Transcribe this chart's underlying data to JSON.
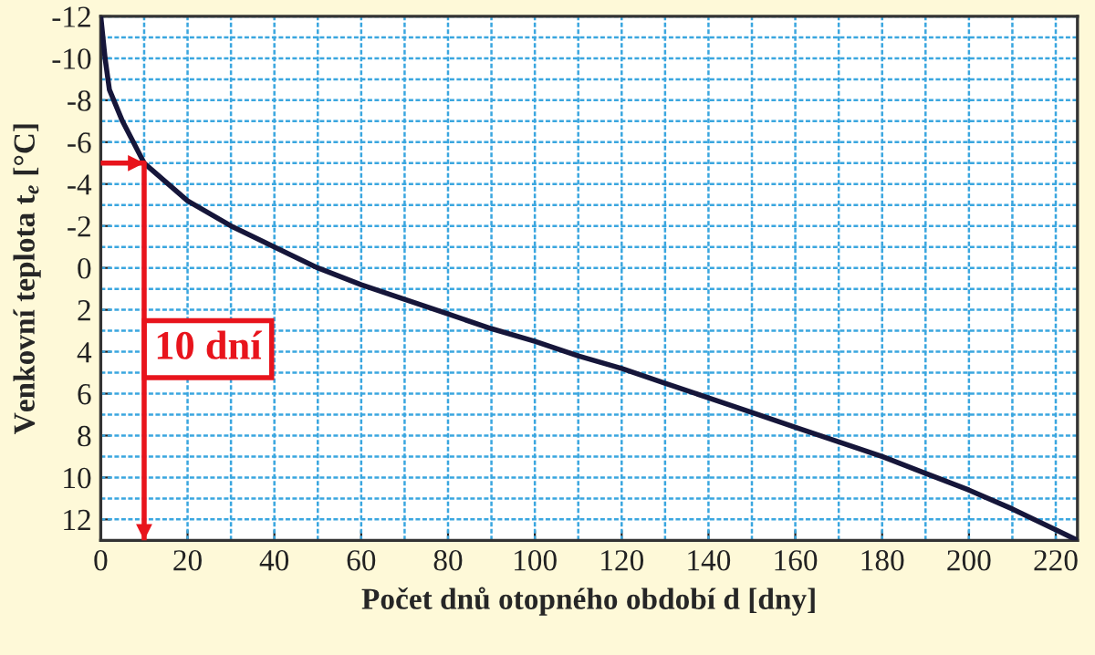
{
  "chart_data": {
    "type": "line",
    "xlabel": "Počet dnů otopného období d [dny]",
    "ylabel": "Venkovní teplota t$_{e}$ [°C]",
    "xlim": [
      0,
      225
    ],
    "xticks": [
      0,
      20,
      40,
      60,
      80,
      100,
      120,
      140,
      160,
      180,
      200,
      220
    ],
    "ylim": [
      13,
      -12
    ],
    "yticks": [
      {
        "value": -12,
        "label": "-12"
      },
      {
        "value": -10,
        "label": "-10"
      },
      {
        "value": -8,
        "label": "-8"
      },
      {
        "value": -6,
        "label": "-6"
      },
      {
        "value": -4,
        "label": "-4"
      },
      {
        "value": -2,
        "label": "-2"
      },
      0,
      2,
      4,
      6,
      8,
      10,
      12
    ],
    "grid": true,
    "series": [
      {
        "color": "#16163a",
        "x": [
          0,
          1,
          2,
          5,
          10,
          20,
          30,
          40,
          50,
          60,
          70,
          80,
          90,
          100,
          110,
          120,
          130,
          140,
          150,
          160,
          170,
          180,
          190,
          200,
          210,
          220,
          225
        ],
        "values": [
          -12,
          -10,
          -8.5,
          -7,
          -5,
          -3.2,
          -2,
          -1,
          0,
          0.8,
          1.5,
          2.2,
          2.9,
          3.5,
          4.2,
          4.8,
          5.5,
          6.2,
          6.9,
          7.6,
          8.3,
          9.0,
          9.8,
          10.6,
          11.5,
          12.5,
          13
        ]
      },
      {
        "color": "#e8141c",
        "x": [
          0,
          10,
          10
        ],
        "values": [
          -5,
          -5,
          13
        ]
      }
    ],
    "annotations": [
      "10 dní"
    ]
  }
}
